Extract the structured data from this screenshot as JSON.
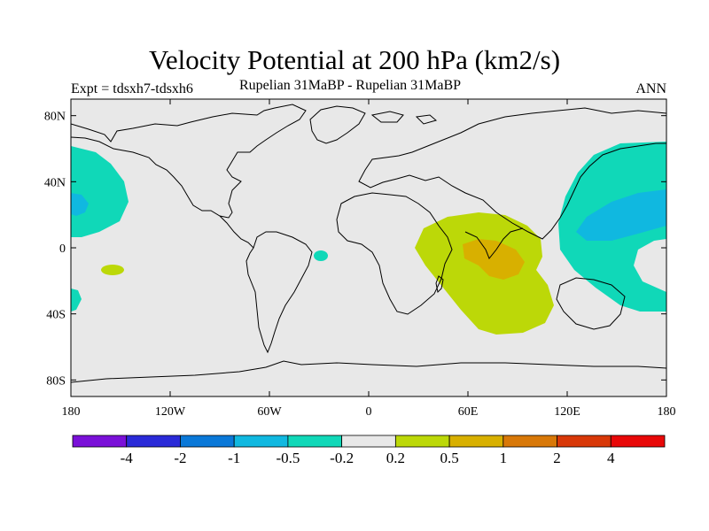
{
  "title": "Velocity Potential at 200 hPa (km2/s)",
  "subtitle_left": "Expt = tdsxh7-tdsxh6",
  "subtitle_center": "Rupelian  31MaBP - Rupelian  31MaBP",
  "subtitle_right": "ANN",
  "axes": {
    "x_ticks": [
      {
        "lon": -180,
        "label": "180"
      },
      {
        "lon": -120,
        "label": "120W"
      },
      {
        "lon": -60,
        "label": "60W"
      },
      {
        "lon": 0,
        "label": "0"
      },
      {
        "lon": 60,
        "label": "60E"
      },
      {
        "lon": 120,
        "label": "120E"
      },
      {
        "lon": 180,
        "label": "180"
      }
    ],
    "y_ticks": [
      {
        "lat": 80,
        "label": "80N"
      },
      {
        "lat": 40,
        "label": "40N"
      },
      {
        "lat": 0,
        "label": "0"
      },
      {
        "lat": -40,
        "label": "40S"
      },
      {
        "lat": -80,
        "label": "80S"
      }
    ],
    "lon_range": [
      -180,
      180
    ],
    "lat_range": [
      -90,
      90
    ]
  },
  "colorbar": {
    "colors": [
      "#7a10d8",
      "#2a2ad8",
      "#0a78d8",
      "#10b8e0",
      "#10d8b8",
      "#e8e8e8",
      "#bcd808",
      "#d8b000",
      "#d87808",
      "#d83808",
      "#e80808"
    ],
    "labels": [
      "-4",
      "-2",
      "-1",
      "-0.5",
      "-0.2",
      "0.2",
      "0.5",
      "1",
      "2",
      "4"
    ]
  },
  "background_color": "#e8e8e8"
}
